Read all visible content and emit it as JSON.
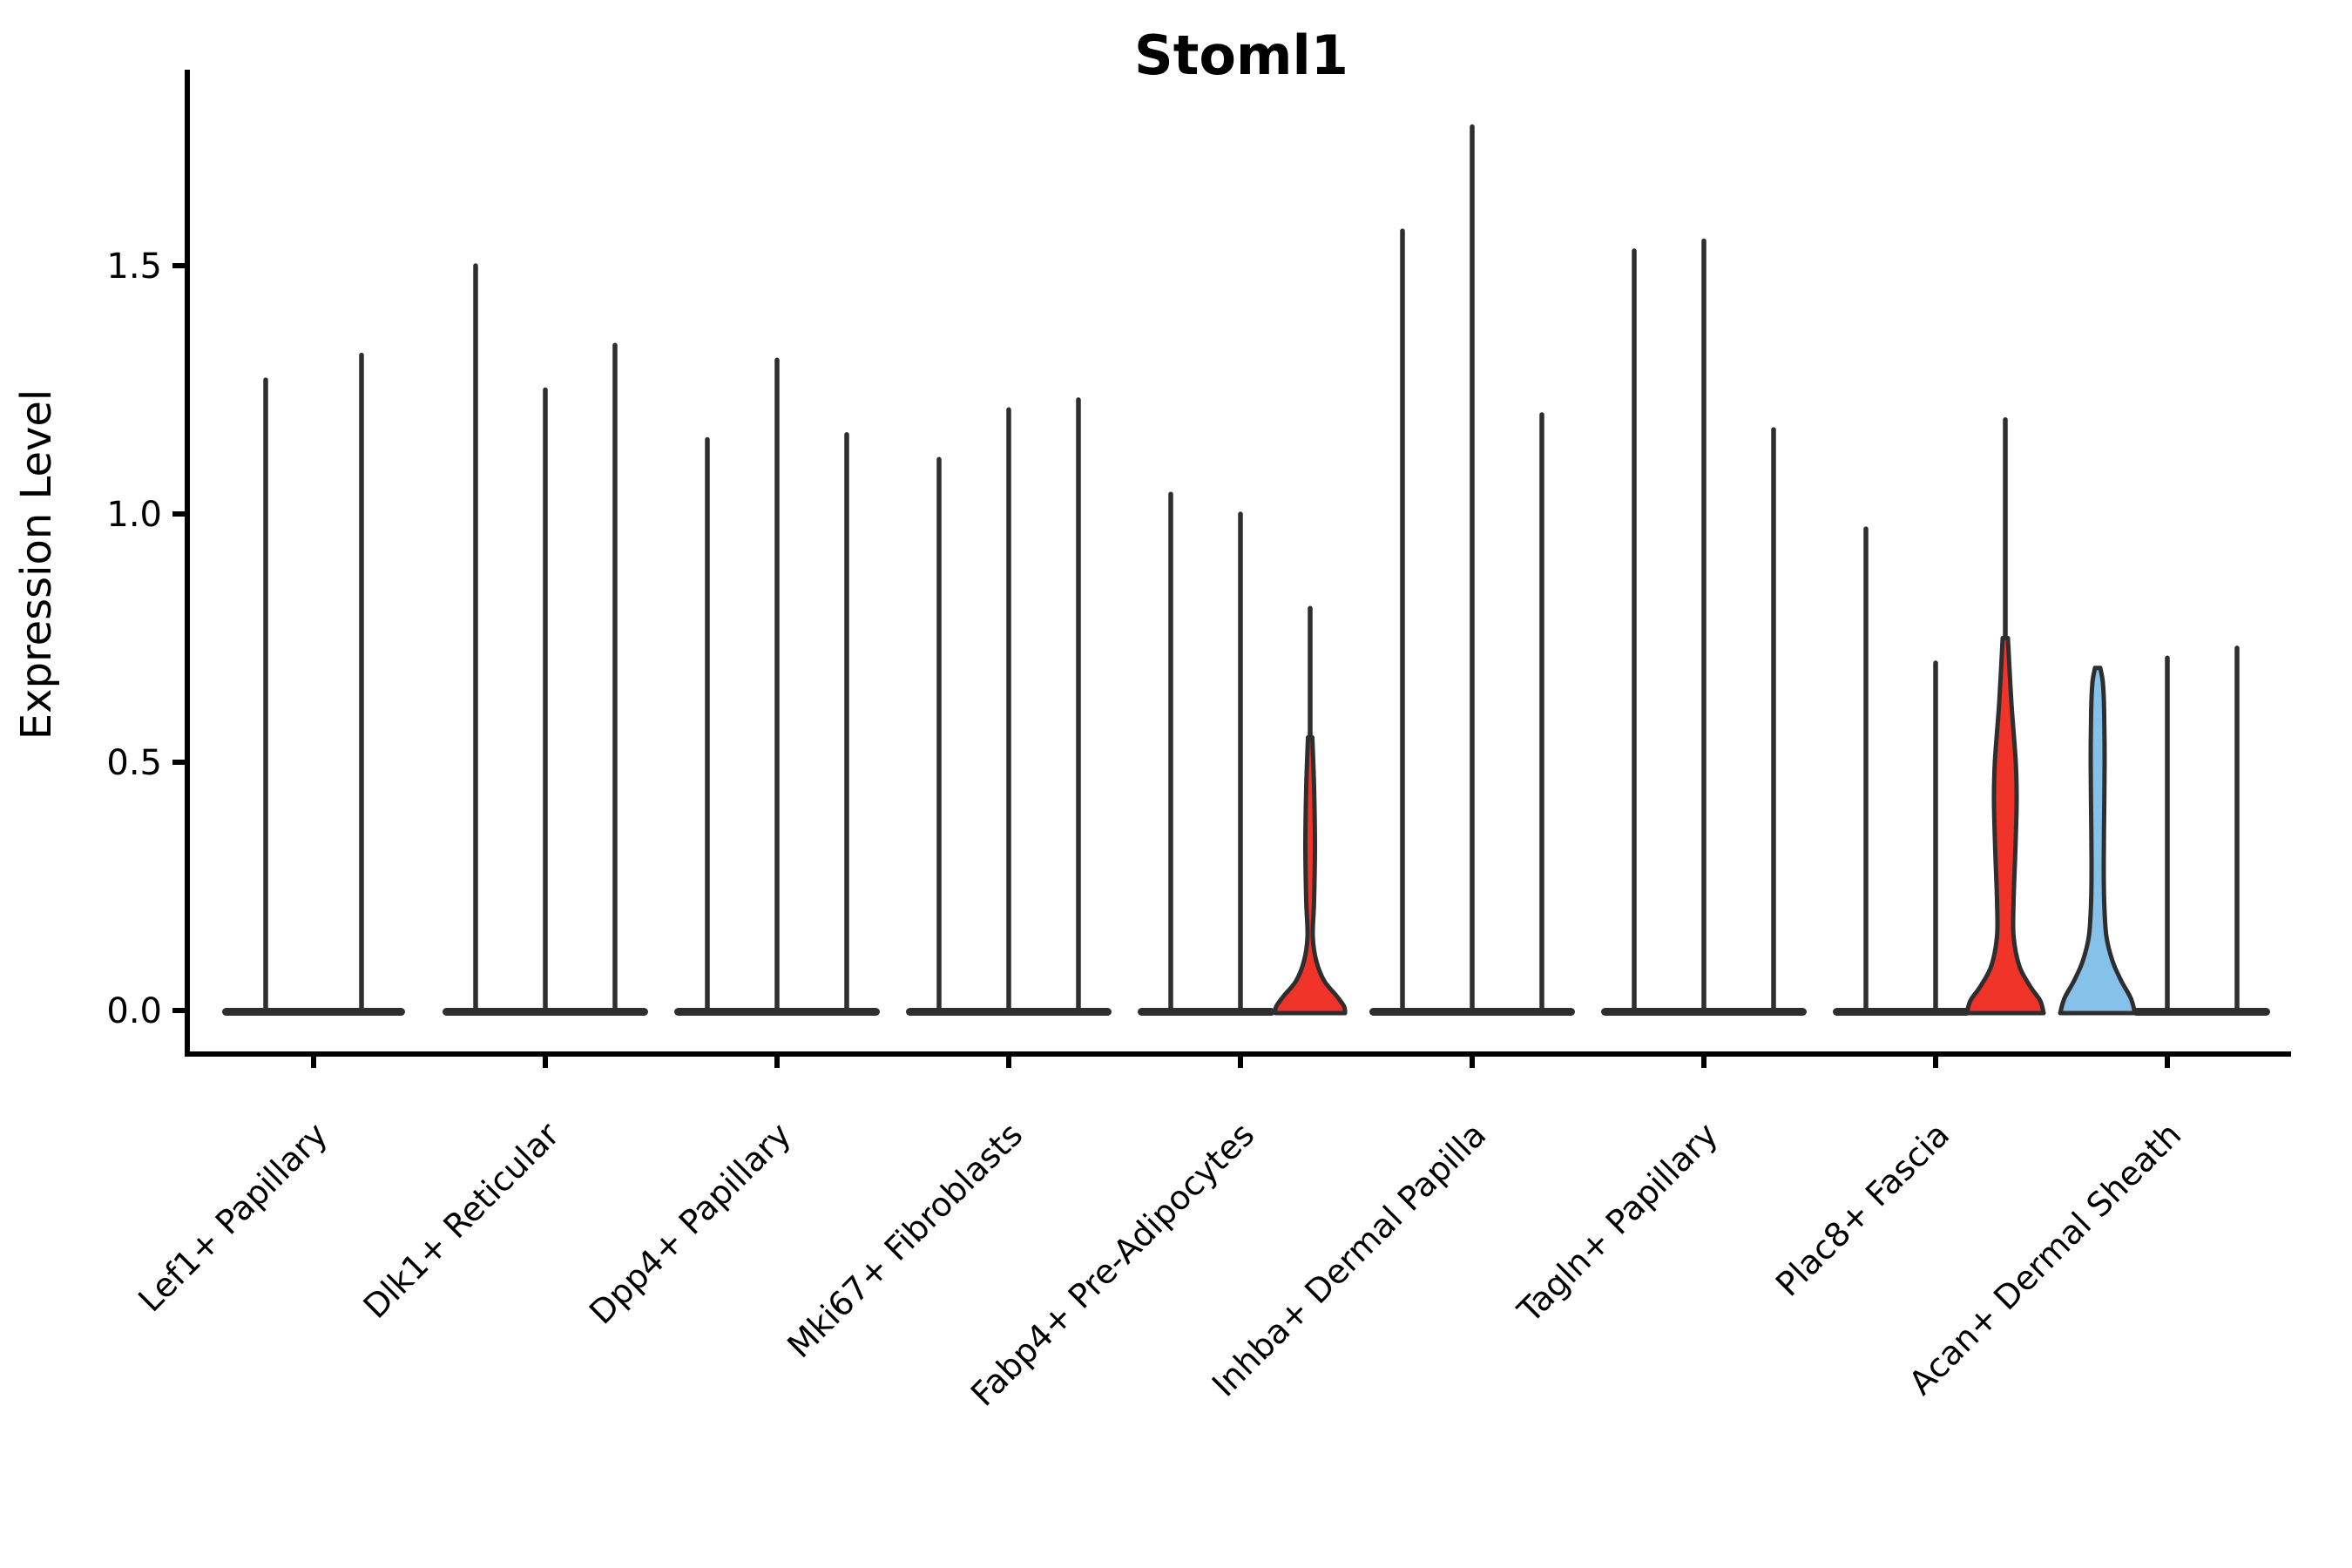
{
  "chart_data": {
    "type": "violin",
    "title": "Stoml1",
    "ylabel": "Expression Level",
    "xlabel": "",
    "grid": false,
    "legend": null,
    "ylim": [
      -0.09,
      1.88
    ],
    "ytick_values": [
      0.0,
      0.5,
      1.0,
      1.5
    ],
    "ytick_labels": [
      "0.0",
      "0.5",
      "1.0",
      "1.5"
    ],
    "categories": [
      "Lef1+ Papillary",
      "Dlk1+ Reticular",
      "Dpp4+ Papillary",
      "Mki67+ Fibroblasts",
      "Fabp4+ Pre-Adipocytes",
      "Inhba+ Dermal Papilla",
      "Tagln+ Papillary",
      "Plac8+ Fascia",
      "Acan+ Dermal Sheath"
    ],
    "colors": {
      "line": "#2e2e2e",
      "outline": "#2e2e2e",
      "axis": "#000000",
      "highlight_red": "#F0342A",
      "highlight_blue": "#85C1E8",
      "background": "#ffffff"
    },
    "description": "Stacked violin plot of Stoml1 expression per fibroblast cluster; most violins collapse to a flat base at 0 with a thin line to the max expressed cell. Colored violins mark clusters with visible expressing populations.",
    "groups": [
      {
        "label": "Lef1+ Papillary",
        "violins": [
          {
            "max": 1.27,
            "style": "line"
          },
          {
            "max": 1.32,
            "style": "line"
          }
        ]
      },
      {
        "label": "Dlk1+ Reticular",
        "violins": [
          {
            "max": 1.5,
            "style": "line"
          },
          {
            "max": 1.25,
            "style": "line"
          },
          {
            "max": 1.34,
            "style": "line"
          }
        ]
      },
      {
        "label": "Dpp4+ Papillary",
        "violins": [
          {
            "max": 1.15,
            "style": "line"
          },
          {
            "max": 1.31,
            "style": "line"
          },
          {
            "max": 1.16,
            "style": "line"
          }
        ]
      },
      {
        "label": "Mki67+ Fibroblasts",
        "violins": [
          {
            "max": 1.11,
            "style": "line"
          },
          {
            "max": 1.21,
            "style": "line"
          },
          {
            "max": 1.23,
            "style": "line"
          }
        ]
      },
      {
        "label": "Fabp4+ Pre-Adipocytes",
        "violins": [
          {
            "max": 1.04,
            "style": "line"
          },
          {
            "max": 1.0,
            "style": "line"
          },
          {
            "max": 0.81,
            "style": "red",
            "profile": [
              [
                0.55,
                2.5
              ],
              [
                0.45,
                4.5
              ],
              [
                0.33,
                5.5
              ],
              [
                0.22,
                4.5
              ],
              [
                0.15,
                3
              ],
              [
                0.1,
                7
              ],
              [
                0.06,
                16
              ],
              [
                0.03,
                30
              ],
              [
                0.008,
                39
              ],
              [
                0,
                40
              ]
            ]
          }
        ]
      },
      {
        "label": "Inhba+ Dermal Papilla",
        "violins": [
          {
            "max": 1.57,
            "style": "line"
          },
          {
            "max": 1.78,
            "style": "line"
          },
          {
            "max": 1.2,
            "style": "line"
          }
        ]
      },
      {
        "label": "Tagln+ Papillary",
        "violins": [
          {
            "max": 1.53,
            "style": "line"
          },
          {
            "max": 1.55,
            "style": "line"
          },
          {
            "max": 1.17,
            "style": "line"
          }
        ]
      },
      {
        "label": "Plac8+ Fascia",
        "violins": [
          {
            "max": 0.97,
            "style": "line"
          },
          {
            "max": 0.7,
            "style": "line"
          },
          {
            "max": 1.19,
            "style": "red",
            "profile": [
              [
                0.75,
                3
              ],
              [
                0.62,
                7
              ],
              [
                0.5,
                12
              ],
              [
                0.42,
                13
              ],
              [
                0.32,
                11.5
              ],
              [
                0.22,
                9.5
              ],
              [
                0.15,
                9.5
              ],
              [
                0.09,
                16
              ],
              [
                0.05,
                28
              ],
              [
                0.02,
                40
              ],
              [
                0,
                44
              ]
            ]
          }
        ]
      },
      {
        "label": "Acan+ Dermal Sheath",
        "violins": [
          {
            "max": 0.69,
            "style": "blue",
            "profile": [
              [
                0.69,
                3
              ],
              [
                0.66,
                6
              ],
              [
                0.6,
                7.5
              ],
              [
                0.5,
                8
              ],
              [
                0.4,
                7.5
              ],
              [
                0.3,
                7
              ],
              [
                0.22,
                7.5
              ],
              [
                0.15,
                10
              ],
              [
                0.1,
                17
              ],
              [
                0.06,
                27
              ],
              [
                0.025,
                38
              ],
              [
                0,
                43
              ]
            ]
          },
          {
            "max": 0.71,
            "style": "line"
          },
          {
            "max": 0.73,
            "style": "line"
          }
        ]
      }
    ]
  }
}
